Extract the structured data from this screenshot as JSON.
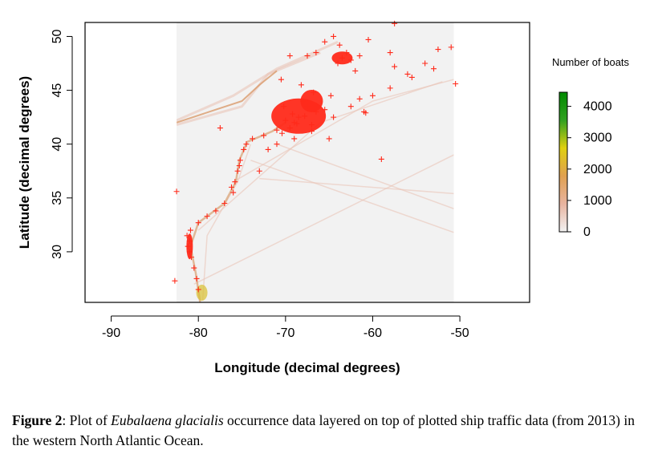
{
  "chart_data": {
    "type": "scatter",
    "xlabel": "Longitude (decimal degrees)",
    "ylabel": "Latitude (decimal degrees)",
    "xlim": [
      -93,
      -42
    ],
    "ylim": [
      25.3,
      51.3
    ],
    "xticks": [
      -90,
      -80,
      -70,
      -60,
      -50
    ],
    "yticks": [
      30,
      35,
      40,
      45,
      50
    ],
    "raster_extent": {
      "lon": [
        -82.5,
        -50.7
      ],
      "lat": [
        25.3,
        51.3
      ]
    },
    "legend": {
      "title": "Number of boats",
      "ticks": [
        0,
        1000,
        2000,
        3000,
        4000
      ],
      "colors": [
        "#f2f2f2",
        "#e8b4a0",
        "#e0a050",
        "#e0d010",
        "#30a020",
        "#008a00"
      ],
      "placement": "right"
    },
    "series": [
      {
        "name": "",
        "marker": "+",
        "color": "#ff2a1a",
        "points": [
          [
            -66.5,
            43.0
          ],
          [
            -67.5,
            43.5
          ],
          [
            -68.5,
            42.5
          ],
          [
            -69.0,
            42.0
          ],
          [
            -70.0,
            42.2
          ],
          [
            -69.5,
            41.5
          ],
          [
            -68.0,
            44.0
          ],
          [
            -66.8,
            44.8
          ],
          [
            -67.0,
            41.8
          ],
          [
            -65.5,
            43.2
          ],
          [
            -70.4,
            41.0
          ],
          [
            -71.0,
            41.3
          ],
          [
            -69.2,
            42.8
          ],
          [
            -68.7,
            41.9
          ],
          [
            -67.8,
            42.6
          ],
          [
            -63.5,
            48.0
          ],
          [
            -62.5,
            47.8
          ],
          [
            -64.0,
            47.5
          ],
          [
            -63.0,
            48.5
          ],
          [
            -64.5,
            50.0
          ],
          [
            -65.5,
            49.5
          ],
          [
            -61.5,
            48.2
          ],
          [
            -62.0,
            46.8
          ],
          [
            -66.5,
            48.5
          ],
          [
            -67.5,
            48.2
          ],
          [
            -60.5,
            49.7
          ],
          [
            -63.8,
            49.2
          ],
          [
            -81.0,
            31.0
          ],
          [
            -81.2,
            30.5
          ],
          [
            -81.0,
            30.0
          ],
          [
            -80.8,
            29.5
          ],
          [
            -80.5,
            28.5
          ],
          [
            -80.2,
            27.5
          ],
          [
            -80.0,
            26.5
          ],
          [
            -81.3,
            31.5
          ],
          [
            -80.9,
            32.0
          ],
          [
            -80.0,
            32.7
          ],
          [
            -79.0,
            33.3
          ],
          [
            -78.0,
            33.8
          ],
          [
            -77.0,
            34.5
          ],
          [
            -76.0,
            35.5
          ],
          [
            -75.8,
            36.5
          ],
          [
            -75.5,
            37.5
          ],
          [
            -75.2,
            38.5
          ],
          [
            -74.8,
            39.5
          ],
          [
            -73.8,
            40.5
          ],
          [
            -72.5,
            40.8
          ],
          [
            -74.5,
            40.0
          ],
          [
            -76.2,
            36.0
          ],
          [
            -75.3,
            38.0
          ],
          [
            -71.0,
            40.0
          ],
          [
            -72.0,
            39.5
          ],
          [
            -69.0,
            40.5
          ],
          [
            -67.0,
            41.2
          ],
          [
            -64.5,
            42.5
          ],
          [
            -62.5,
            43.5
          ],
          [
            -61.0,
            43.0
          ],
          [
            -60.0,
            44.5
          ],
          [
            -58.0,
            45.2
          ],
          [
            -61.5,
            44.2
          ],
          [
            -56.0,
            46.5
          ],
          [
            -54.0,
            47.5
          ],
          [
            -53.0,
            47.0
          ],
          [
            -57.5,
            47.2
          ],
          [
            -55.5,
            46.2
          ],
          [
            -59.0,
            38.6
          ],
          [
            -58.0,
            48.5
          ],
          [
            -52.5,
            48.8
          ],
          [
            -50.5,
            45.6
          ],
          [
            -51.0,
            49.0
          ],
          [
            -82.5,
            35.6
          ],
          [
            -82.7,
            27.3
          ],
          [
            -77.5,
            41.5
          ],
          [
            -68.2,
            45.5
          ],
          [
            -70.5,
            46.0
          ],
          [
            -57.5,
            51.2
          ],
          [
            -60.8,
            42.9
          ],
          [
            -65.0,
            40.5
          ],
          [
            -73.0,
            37.5
          ],
          [
            -69.5,
            48.2
          ],
          [
            -64.8,
            44.5
          ],
          [
            -70.2,
            43.5
          ]
        ]
      }
    ]
  },
  "caption": {
    "label": "Figure 2",
    "text_before": ": Plot of ",
    "species": "Eubalaena glacialis",
    "text_after": " occurrence data layered on top of plotted ship traffic data (from 2013) in the western North Atlantic Ocean."
  }
}
